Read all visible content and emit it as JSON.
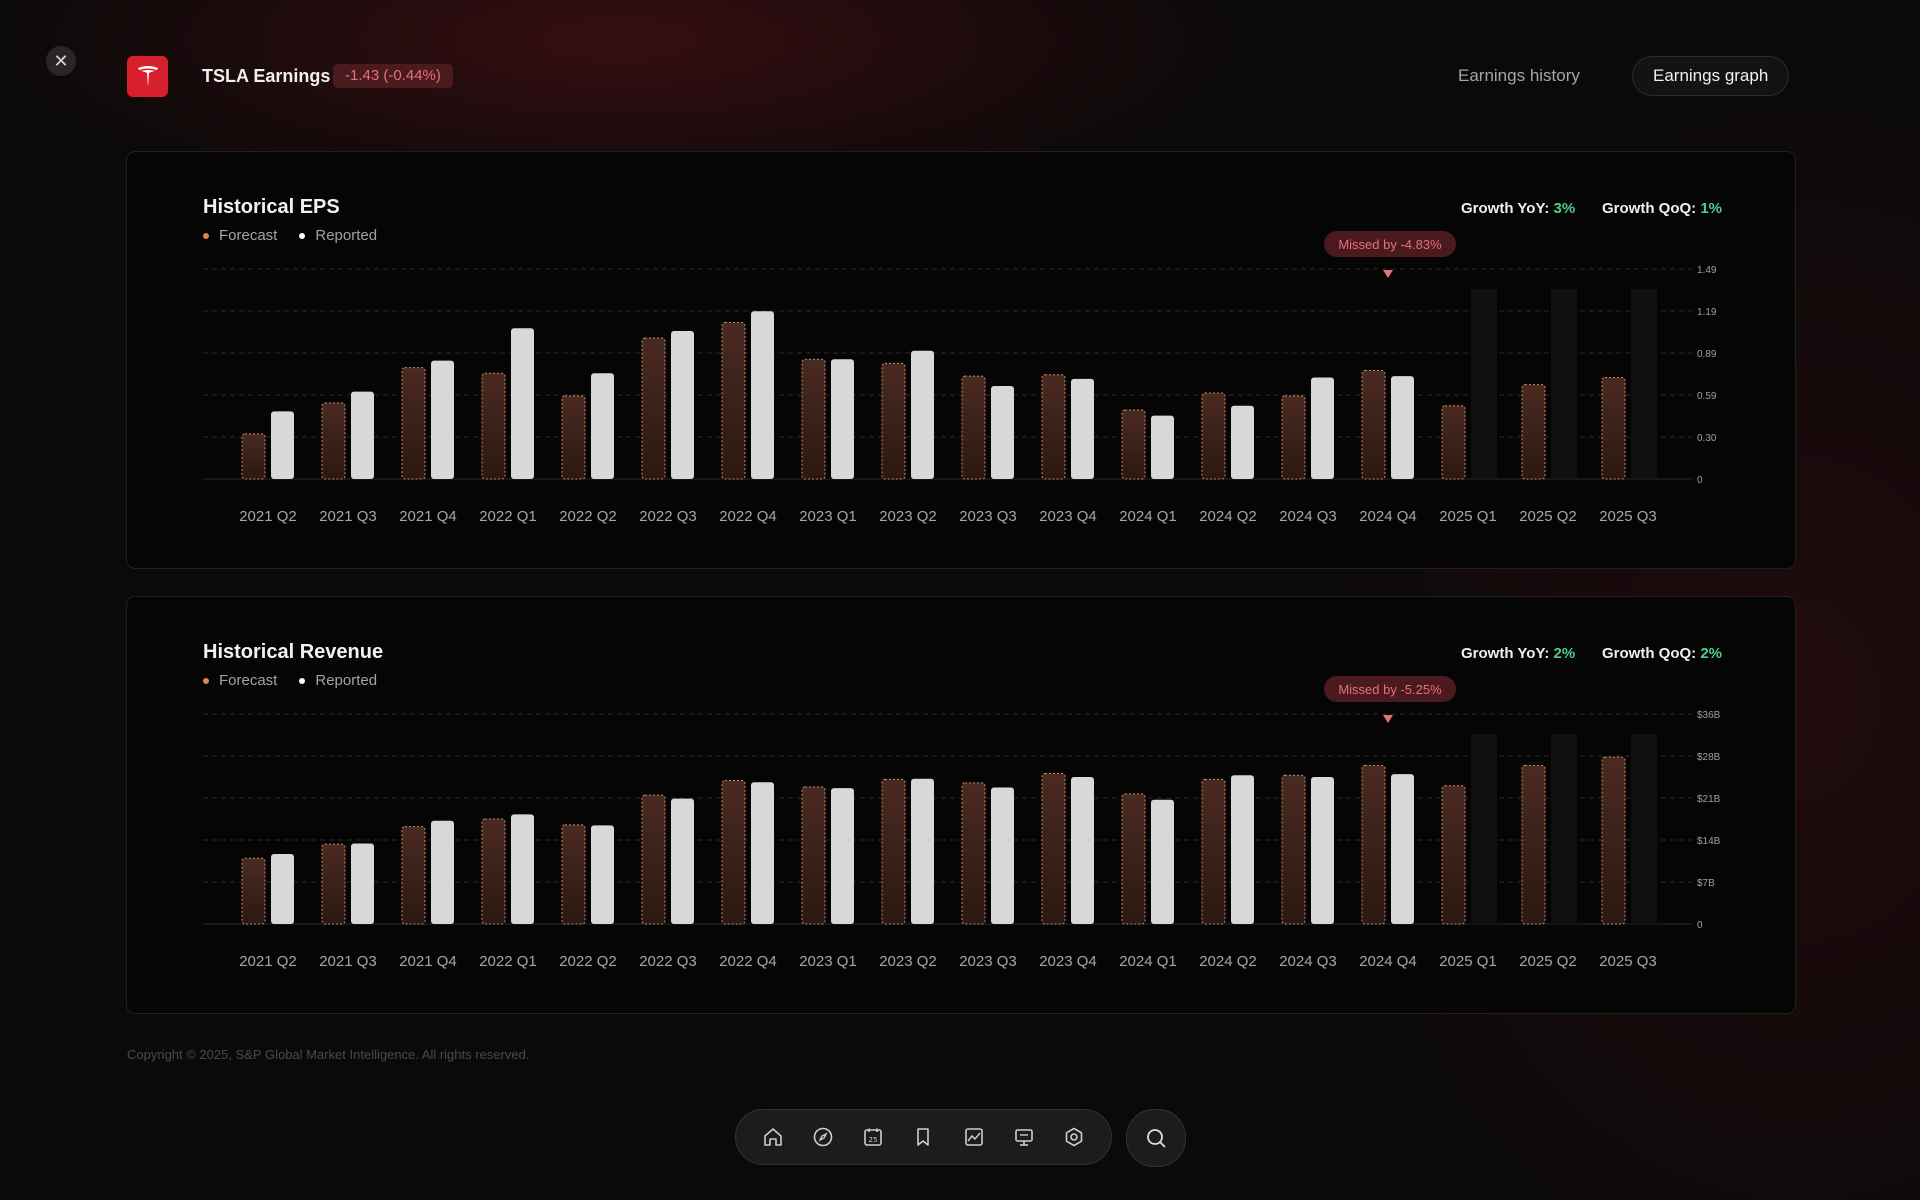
{
  "header": {
    "close_icon": "close-icon",
    "ticker_title": "TSLA Earnings",
    "change": "-1.43 (-0.44%)",
    "tabs": [
      {
        "label": "Earnings history",
        "active": false
      },
      {
        "label": "Earnings graph",
        "active": true
      }
    ]
  },
  "colors": {
    "accent": "#d81f2d",
    "forecast": "#e0864c",
    "reported": "#d9d9d9",
    "growth": "#4ccf8a",
    "miss": "#e7707a"
  },
  "eps": {
    "title": "Historical EPS",
    "legend": {
      "forecast": "Forecast",
      "reported": "Reported"
    },
    "growth_yoy_label": "Growth YoY:",
    "growth_yoy": "3%",
    "growth_qoq_label": "Growth QoQ:",
    "growth_qoq": "1%",
    "miss_label": "Missed by -4.83%"
  },
  "revenue": {
    "title": "Historical Revenue",
    "legend": {
      "forecast": "Forecast",
      "reported": "Reported"
    },
    "growth_yoy_label": "Growth YoY:",
    "growth_yoy": "2%",
    "growth_qoq_label": "Growth QoQ:",
    "growth_qoq": "2%",
    "miss_label": "Missed by -5.25%"
  },
  "chart_data": [
    {
      "type": "bar",
      "title": "Historical EPS",
      "categories": [
        "2021 Q2",
        "2021 Q3",
        "2021 Q4",
        "2022 Q1",
        "2022 Q2",
        "2022 Q3",
        "2022 Q4",
        "2023 Q1",
        "2023 Q2",
        "2023 Q3",
        "2023 Q4",
        "2024 Q1",
        "2024 Q2",
        "2024 Q3",
        "2024 Q4",
        "2025 Q1",
        "2025 Q2",
        "2025 Q3"
      ],
      "series": [
        {
          "name": "Forecast",
          "values": [
            0.32,
            0.54,
            0.79,
            0.75,
            0.59,
            1.0,
            1.11,
            0.85,
            0.82,
            0.73,
            0.74,
            0.49,
            0.61,
            0.59,
            0.77,
            0.52,
            0.67,
            0.72
          ]
        },
        {
          "name": "Reported",
          "values": [
            0.48,
            0.62,
            0.84,
            1.07,
            0.75,
            1.05,
            1.19,
            0.85,
            0.91,
            0.66,
            0.71,
            0.45,
            0.52,
            0.72,
            0.73,
            null,
            null,
            null
          ]
        }
      ],
      "yticks": [
        "0",
        "0.30",
        "0.59",
        "0.89",
        "1.19",
        "1.49"
      ],
      "ylim": [
        0,
        1.49
      ],
      "miss_annotation": {
        "category": "2024 Q4",
        "label": "Missed by -4.83%"
      },
      "grid": true,
      "legend_position": "top-left"
    },
    {
      "type": "bar",
      "title": "Historical Revenue",
      "categories": [
        "2021 Q2",
        "2021 Q3",
        "2021 Q4",
        "2022 Q1",
        "2022 Q2",
        "2022 Q3",
        "2022 Q4",
        "2023 Q1",
        "2023 Q2",
        "2023 Q3",
        "2023 Q4",
        "2024 Q1",
        "2024 Q2",
        "2024 Q3",
        "2024 Q4",
        "2025 Q1",
        "2025 Q2",
        "2025 Q3"
      ],
      "series": [
        {
          "name": "Forecast",
          "values": [
            11.3,
            13.7,
            16.7,
            18.0,
            17.0,
            22.1,
            24.6,
            23.5,
            24.8,
            24.2,
            25.8,
            22.3,
            24.8,
            25.5,
            27.2,
            23.7,
            27.2,
            28.6
          ]
        },
        {
          "name": "Reported",
          "values": [
            12.0,
            13.8,
            17.7,
            18.8,
            16.9,
            21.5,
            24.3,
            23.3,
            24.9,
            23.4,
            25.2,
            21.3,
            25.5,
            25.2,
            25.7,
            null,
            null,
            null
          ]
        }
      ],
      "yticks": [
        "0",
        "$7B",
        "$14B",
        "$21B",
        "$28B",
        "$36B"
      ],
      "ylim": [
        0,
        36
      ],
      "miss_annotation": {
        "category": "2024 Q4",
        "label": "Missed by -5.25%"
      },
      "grid": true,
      "legend_position": "top-left"
    }
  ],
  "footer": {
    "copyright": "Copyright © 2025, S&P Global Market Intelligence. All rights reserved."
  },
  "dock": {
    "icons": [
      "home-icon",
      "compass-icon",
      "calendar-icon",
      "bookmark-icon",
      "chart-icon",
      "presentation-icon",
      "settings-icon"
    ],
    "calendar_day": "25",
    "search_icon": "search-icon"
  }
}
